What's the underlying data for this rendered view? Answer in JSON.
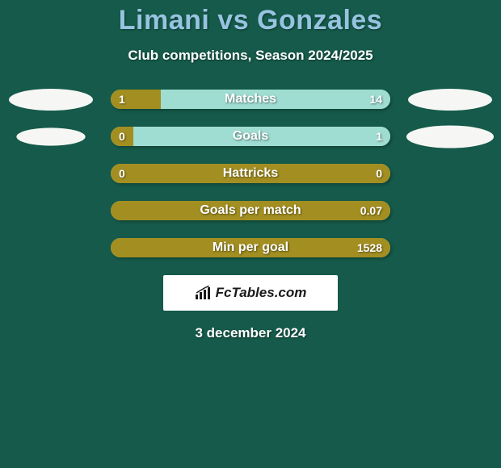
{
  "colors": {
    "background": "#155a4a",
    "title": "#96c4e0",
    "subtitle": "#ffffff",
    "track": "#9fdcd2",
    "left_fill": "#a38f21",
    "right_fill": "#9fdcd2",
    "bar_label": "#ffffff",
    "val_text": "#ffffff",
    "brand_bg": "#ffffff",
    "brand_text": "#1a1a1a",
    "date": "#ffffff",
    "logo_left": "#f6f7f4",
    "logo_right": "#f6f7f4"
  },
  "title": "Limani vs Gonzales",
  "subtitle": "Club competitions, Season 2024/2025",
  "typography": {
    "title_fontsize": 34,
    "subtitle_fontsize": 17,
    "bar_label_fontsize": 16,
    "val_fontsize": 14,
    "brand_fontsize": 17,
    "date_fontsize": 17
  },
  "bar": {
    "track_width": 346,
    "track_height": 24,
    "border_radius": 14
  },
  "rows": [
    {
      "label": "Matches",
      "left_val": "1",
      "right_val": "14",
      "left_pct": 18,
      "show_logos": true,
      "logo_left_scale": 1.0,
      "logo_right_scale": 1.0
    },
    {
      "label": "Goals",
      "left_val": "0",
      "right_val": "1",
      "left_pct": 8,
      "show_logos": true,
      "logo_left_scale": 0.82,
      "logo_right_scale": 1.04
    },
    {
      "label": "Hattricks",
      "left_val": "0",
      "right_val": "0",
      "left_pct": 100,
      "show_logos": false
    },
    {
      "label": "Goals per match",
      "left_val": "",
      "right_val": "0.07",
      "left_pct": 100,
      "show_logos": false
    },
    {
      "label": "Min per goal",
      "left_val": "",
      "right_val": "1528",
      "left_pct": 100,
      "show_logos": false
    }
  ],
  "brand": "FcTables.com",
  "date": "3 december 2024"
}
